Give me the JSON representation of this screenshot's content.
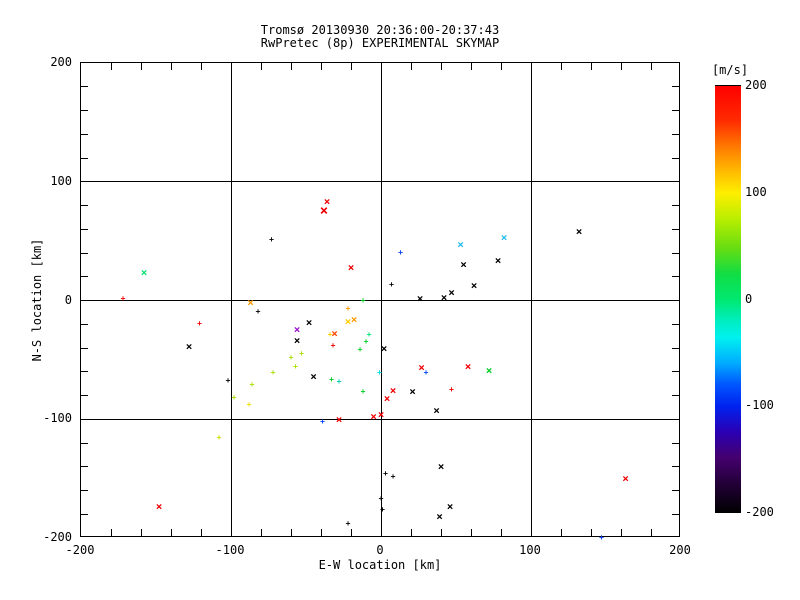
{
  "title": {
    "line1": "Tromsø 20130930 20:36:00-20:37:43",
    "line2": "RwPretec (8p) EXPERIMENTAL SKYMAP"
  },
  "axes": {
    "xlabel": "E-W location [km]",
    "ylabel": "N-S location [km]",
    "xlim": [
      -200,
      200
    ],
    "ylim": [
      -200,
      200
    ],
    "xticks": [
      -200,
      -100,
      0,
      100,
      200
    ],
    "yticks": [
      200,
      100,
      0,
      -100,
      -200
    ],
    "xtick_labels": [
      "-200",
      "-100",
      "0",
      "100",
      "200"
    ],
    "ytick_labels": [
      "200",
      "100",
      "0",
      "-100",
      "-200"
    ],
    "minor_tick_step": 20,
    "grid": true
  },
  "colorbar": {
    "label": "[m/s]",
    "lim": [
      -200,
      200
    ],
    "ticks": [
      200,
      100,
      0,
      -100,
      -200
    ],
    "tick_labels": [
      "200",
      "100",
      "0",
      "-100",
      "-200"
    ],
    "top_color": "#ff0000",
    "mid_color": "#00e870",
    "bottom_color": "#000000"
  },
  "chart_data": {
    "type": "scatter",
    "title": "Tromsø 20130930 20:36:00-20:37:43 / RwPretec (8p) EXPERIMENTAL SKYMAP",
    "xlabel": "E-W location [km]",
    "ylabel": "N-S location [km]",
    "color_units": "m/s",
    "xlim": [
      -200,
      200
    ],
    "ylim": [
      -200,
      200
    ],
    "marker_legend": {
      "x": "cross marker",
      "s": "small dot/plus marker"
    },
    "points": [
      {
        "x": -36,
        "y": 83,
        "c": "#ee0000",
        "s": "x"
      },
      {
        "x": -38,
        "y": 75,
        "c": "#ee0000",
        "s": "x",
        "big": true
      },
      {
        "x": -20,
        "y": 27,
        "c": "#ee0000",
        "s": "x"
      },
      {
        "x": -158,
        "y": 23,
        "c": "#00e070",
        "s": "x"
      },
      {
        "x": 53,
        "y": 47,
        "c": "#22bbee",
        "s": "x"
      },
      {
        "x": 82,
        "y": 53,
        "c": "#22bbee",
        "s": "x"
      },
      {
        "x": 132,
        "y": 58,
        "c": "#000000",
        "s": "x"
      },
      {
        "x": 55,
        "y": 30,
        "c": "#000000",
        "s": "x"
      },
      {
        "x": 78,
        "y": 33,
        "c": "#000000",
        "s": "x"
      },
      {
        "x": 62,
        "y": 12,
        "c": "#000000",
        "s": "x"
      },
      {
        "x": 47,
        "y": 6,
        "c": "#000000",
        "s": "x"
      },
      {
        "x": 42,
        "y": 2,
        "c": "#000000",
        "s": "x"
      },
      {
        "x": 26,
        "y": 1,
        "c": "#000000",
        "s": "x"
      },
      {
        "x": -87,
        "y": -2,
        "c": "#ff9900",
        "s": "x"
      },
      {
        "x": -128,
        "y": -39,
        "c": "#000000",
        "s": "x"
      },
      {
        "x": -48,
        "y": -19,
        "c": "#000000",
        "s": "x"
      },
      {
        "x": -56,
        "y": -25,
        "c": "#9911cc",
        "s": "x"
      },
      {
        "x": -56,
        "y": -34,
        "c": "#000000",
        "s": "x"
      },
      {
        "x": -31,
        "y": -28,
        "c": "#ff4400",
        "s": "x"
      },
      {
        "x": -22,
        "y": -18,
        "c": "#ffcc00",
        "s": "x"
      },
      {
        "x": -18,
        "y": -16,
        "c": "#ff9900",
        "s": "x"
      },
      {
        "x": 2,
        "y": -41,
        "c": "#000000",
        "s": "x"
      },
      {
        "x": -45,
        "y": -64,
        "c": "#000000",
        "s": "x"
      },
      {
        "x": 27,
        "y": -57,
        "c": "#ee0000",
        "s": "x"
      },
      {
        "x": 58,
        "y": -56,
        "c": "#ee0000",
        "s": "x"
      },
      {
        "x": 72,
        "y": -59,
        "c": "#00cc22",
        "s": "x"
      },
      {
        "x": 8,
        "y": -76,
        "c": "#ee0000",
        "s": "x"
      },
      {
        "x": 21,
        "y": -77,
        "c": "#000000",
        "s": "x"
      },
      {
        "x": 4,
        "y": -83,
        "c": "#ee0000",
        "s": "x"
      },
      {
        "x": 37,
        "y": -93,
        "c": "#000000",
        "s": "x"
      },
      {
        "x": -28,
        "y": -101,
        "c": "#ee0000",
        "s": "x"
      },
      {
        "x": -5,
        "y": -98,
        "c": "#ee0000",
        "s": "x"
      },
      {
        "x": 0,
        "y": -96,
        "c": "#ee0000",
        "s": "x"
      },
      {
        "x": 40,
        "y": -140,
        "c": "#000000",
        "s": "x"
      },
      {
        "x": 46,
        "y": -174,
        "c": "#000000",
        "s": "x"
      },
      {
        "x": 39,
        "y": -182,
        "c": "#000000",
        "s": "x"
      },
      {
        "x": -148,
        "y": -174,
        "c": "#ee0000",
        "s": "x"
      },
      {
        "x": 163,
        "y": -150,
        "c": "#ee0000",
        "s": "x"
      },
      {
        "x": -172,
        "y": 1,
        "c": "#ee0000",
        "s": "s"
      },
      {
        "x": -121,
        "y": -20,
        "c": "#ee0000",
        "s": "s"
      },
      {
        "x": -73,
        "y": 51,
        "c": "#000000",
        "s": "s"
      },
      {
        "x": -82,
        "y": -10,
        "c": "#000000",
        "s": "s"
      },
      {
        "x": 7,
        "y": 13,
        "c": "#000000",
        "s": "s"
      },
      {
        "x": 13,
        "y": 40,
        "c": "#0044ee",
        "s": "s"
      },
      {
        "x": -12,
        "y": 0,
        "c": "#00cc22",
        "s": "s"
      },
      {
        "x": -22,
        "y": -7,
        "c": "#ff9900",
        "s": "s"
      },
      {
        "x": -34,
        "y": -29,
        "c": "#ffcc00",
        "s": "s"
      },
      {
        "x": -32,
        "y": -38,
        "c": "#ee0000",
        "s": "s"
      },
      {
        "x": -10,
        "y": -35,
        "c": "#00cc22",
        "s": "s"
      },
      {
        "x": -8,
        "y": -29,
        "c": "#00e070",
        "s": "s"
      },
      {
        "x": -14,
        "y": -42,
        "c": "#00cc22",
        "s": "s"
      },
      {
        "x": -60,
        "y": -48,
        "c": "#aadd00",
        "s": "s"
      },
      {
        "x": -53,
        "y": -45,
        "c": "#aadd00",
        "s": "s"
      },
      {
        "x": -57,
        "y": -56,
        "c": "#aadd00",
        "s": "s"
      },
      {
        "x": -72,
        "y": -61,
        "c": "#aadd00",
        "s": "s"
      },
      {
        "x": -86,
        "y": -71,
        "c": "#aadd00",
        "s": "s"
      },
      {
        "x": -33,
        "y": -67,
        "c": "#00cc22",
        "s": "s"
      },
      {
        "x": -28,
        "y": -69,
        "c": "#00ccaa",
        "s": "s"
      },
      {
        "x": -12,
        "y": -77,
        "c": "#00cc22",
        "s": "s"
      },
      {
        "x": -1,
        "y": -61,
        "c": "#00d8e8",
        "s": "s"
      },
      {
        "x": 30,
        "y": -61,
        "c": "#0044ee",
        "s": "s"
      },
      {
        "x": 47,
        "y": -75,
        "c": "#ee0000",
        "s": "s"
      },
      {
        "x": -98,
        "y": -82,
        "c": "#aadd00",
        "s": "s"
      },
      {
        "x": -88,
        "y": -88,
        "c": "#eedd00",
        "s": "s"
      },
      {
        "x": -108,
        "y": -116,
        "c": "#ccdd00",
        "s": "s"
      },
      {
        "x": -102,
        "y": -68,
        "c": "#000000",
        "s": "s"
      },
      {
        "x": -39,
        "y": -102,
        "c": "#0044ee",
        "s": "s"
      },
      {
        "x": 3,
        "y": -146,
        "c": "#000000",
        "s": "s"
      },
      {
        "x": 8,
        "y": -149,
        "c": "#000000",
        "s": "s"
      },
      {
        "x": 0,
        "y": -167,
        "c": "#000000",
        "s": "s"
      },
      {
        "x": 1,
        "y": -176,
        "c": "#000000",
        "s": "s"
      },
      {
        "x": -22,
        "y": -188,
        "c": "#000000",
        "s": "s"
      },
      {
        "x": 147,
        "y": -200,
        "c": "#0044ee",
        "s": "s"
      }
    ]
  }
}
